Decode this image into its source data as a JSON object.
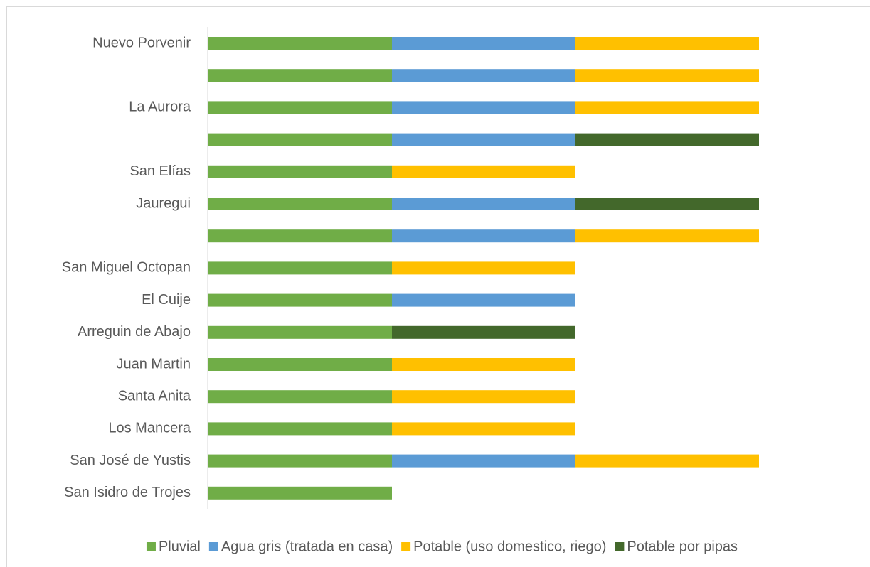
{
  "chart_data": {
    "type": "stacked-bar-horizontal",
    "categories": [
      "Nuevo Porvenir",
      null,
      "La Aurora",
      null,
      "San Elías",
      "Jauregui",
      null,
      "San Miguel Octopan",
      "El Cuije",
      "Arreguin de Abajo",
      "Juan Martin",
      "Santa Anita",
      "Los Mancera",
      "San José de Yustis",
      "San Isidro de Trojes"
    ],
    "series": [
      {
        "name": "Pluvial",
        "color": "#70ad47",
        "values": [
          1,
          1,
          1,
          1,
          1,
          1,
          1,
          1,
          1,
          1,
          1,
          1,
          1,
          1,
          1
        ]
      },
      {
        "name": "Agua gris (tratada en casa)",
        "color": "#5b9bd5",
        "values": [
          1,
          1,
          1,
          1,
          0,
          1,
          1,
          0,
          1,
          0,
          0,
          0,
          0,
          1,
          0
        ]
      },
      {
        "name": "Potable (uso domestico, riego)",
        "color": "#ffc000",
        "values": [
          1,
          1,
          1,
          0,
          1,
          0,
          1,
          1,
          0,
          0,
          1,
          1,
          1,
          1,
          0
        ]
      },
      {
        "name": "Potable por pipas",
        "color": "#43682b",
        "values": [
          0,
          0,
          0,
          1,
          0,
          1,
          0,
          0,
          0,
          1,
          0,
          0,
          0,
          0,
          0
        ]
      }
    ],
    "legend": "bottom"
  }
}
